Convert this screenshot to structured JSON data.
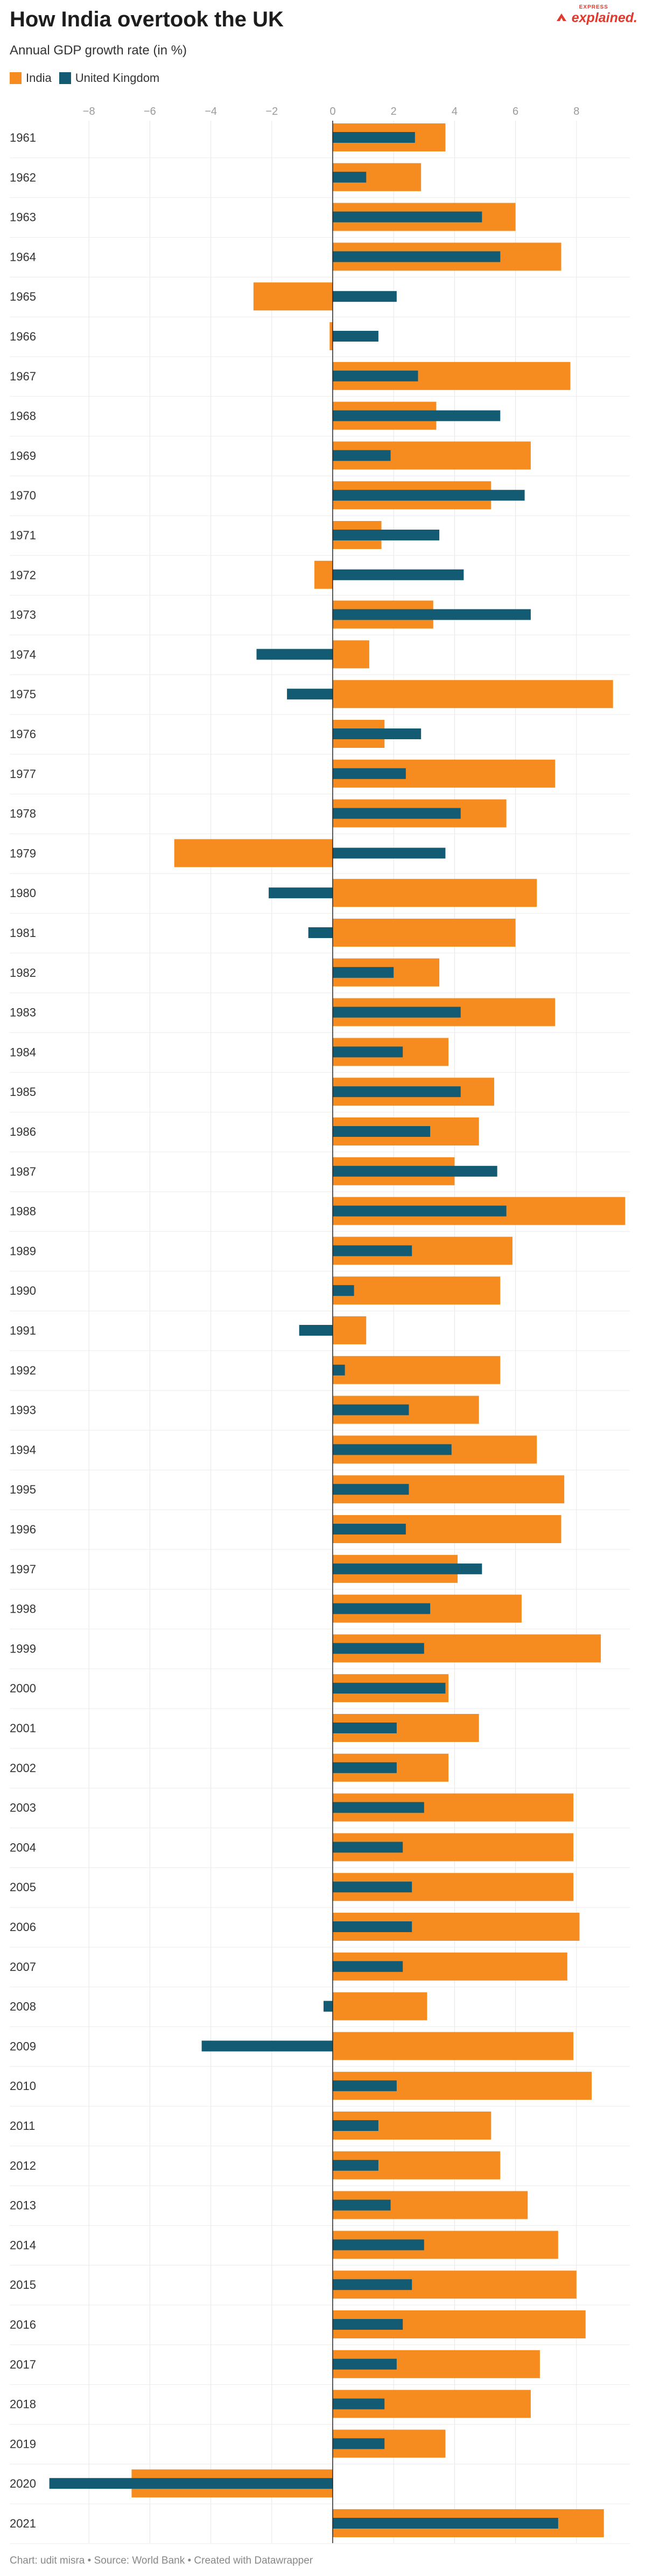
{
  "header": {
    "title": "How India overtook the UK",
    "subtitle": "Annual GDP growth rate (in %)"
  },
  "brand": {
    "small": "EXPRESS",
    "main": "explained."
  },
  "footer": {
    "text": "Chart: udit misra • Source: World Bank • Created with Datawrapper"
  },
  "colors": {
    "india": "#F68B1F",
    "uk": "#125B73",
    "brand": "#E03A2F"
  },
  "chart_data": {
    "type": "bar",
    "orientation": "horizontal",
    "xlim": [
      -9,
      10
    ],
    "xticks": [
      -8,
      -6,
      -4,
      -2,
      0,
      2,
      4,
      6,
      8
    ],
    "grid": true,
    "legend_position": "top-left",
    "categories": [
      "1961",
      "1962",
      "1963",
      "1964",
      "1965",
      "1966",
      "1967",
      "1968",
      "1969",
      "1970",
      "1971",
      "1972",
      "1973",
      "1974",
      "1975",
      "1976",
      "1977",
      "1978",
      "1979",
      "1980",
      "1981",
      "1982",
      "1983",
      "1984",
      "1985",
      "1986",
      "1987",
      "1988",
      "1989",
      "1990",
      "1991",
      "1992",
      "1993",
      "1994",
      "1995",
      "1996",
      "1997",
      "1998",
      "1999",
      "2000",
      "2001",
      "2002",
      "2003",
      "2004",
      "2005",
      "2006",
      "2007",
      "2008",
      "2009",
      "2010",
      "2011",
      "2012",
      "2013",
      "2014",
      "2015",
      "2016",
      "2017",
      "2018",
      "2019",
      "2020",
      "2021"
    ],
    "series": [
      {
        "name": "India",
        "color": "#F68B1F",
        "values": [
          3.7,
          2.9,
          6.0,
          7.5,
          -2.6,
          -0.1,
          7.8,
          3.4,
          6.5,
          5.2,
          1.6,
          -0.6,
          3.3,
          1.2,
          9.2,
          1.7,
          7.3,
          5.7,
          -5.2,
          6.7,
          6.0,
          3.5,
          7.3,
          3.8,
          5.3,
          4.8,
          4.0,
          9.6,
          5.9,
          5.5,
          1.1,
          5.5,
          4.8,
          6.7,
          7.6,
          7.5,
          4.1,
          6.2,
          8.8,
          3.8,
          4.8,
          3.8,
          7.9,
          7.9,
          7.9,
          8.1,
          7.7,
          3.1,
          7.9,
          8.5,
          5.2,
          5.5,
          6.4,
          7.4,
          8.0,
          8.3,
          6.8,
          6.5,
          3.7,
          -6.6,
          8.9
        ]
      },
      {
        "name": "United Kingdom",
        "color": "#125B73",
        "values": [
          2.7,
          1.1,
          4.9,
          5.5,
          2.1,
          1.5,
          2.8,
          5.5,
          1.9,
          6.3,
          3.5,
          4.3,
          6.5,
          -2.5,
          -1.5,
          2.9,
          2.4,
          4.2,
          3.7,
          -2.1,
          -0.8,
          2.0,
          4.2,
          2.3,
          4.2,
          3.2,
          5.4,
          5.7,
          2.6,
          0.7,
          -1.1,
          0.4,
          2.5,
          3.9,
          2.5,
          2.4,
          4.9,
          3.2,
          3.0,
          3.7,
          2.1,
          2.1,
          3.0,
          2.3,
          2.6,
          2.6,
          2.3,
          -0.3,
          -4.3,
          2.1,
          1.5,
          1.5,
          1.9,
          3.0,
          2.6,
          2.3,
          2.1,
          1.7,
          1.7,
          -9.3,
          7.4
        ]
      }
    ]
  }
}
